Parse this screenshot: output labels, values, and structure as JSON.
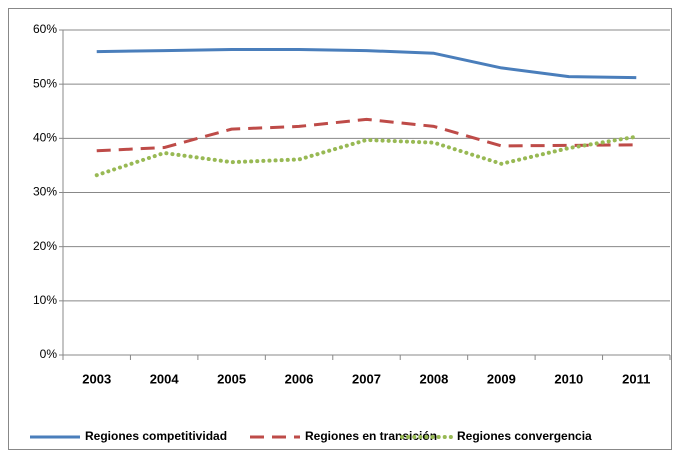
{
  "chart_data": {
    "type": "line",
    "categories": [
      "2003",
      "2004",
      "2005",
      "2006",
      "2007",
      "2008",
      "2009",
      "2010",
      "2011"
    ],
    "series": [
      {
        "name": "Regiones competitividad",
        "color": "#4a7ebb",
        "style": "solid",
        "values": [
          56,
          56.2,
          56.4,
          56.4,
          56.2,
          55.7,
          53,
          51.4,
          51.2
        ]
      },
      {
        "name": "Regiones en transición",
        "color": "#be4b48",
        "style": "dash",
        "values": [
          37.7,
          38.3,
          41.7,
          42.2,
          43.5,
          42.2,
          38.6,
          38.7,
          38.8
        ]
      },
      {
        "name": "Regiones convergencia",
        "color": "#98b954",
        "style": "dot",
        "values": [
          33.2,
          37.3,
          35.6,
          36.1,
          39.7,
          39.2,
          35.3,
          38.2,
          40.3
        ]
      }
    ],
    "ylim": [
      0,
      60
    ],
    "yticks": [
      {
        "value": 0,
        "label": "0%"
      },
      {
        "value": 10,
        "label": "10%"
      },
      {
        "value": 20,
        "label": "20%"
      },
      {
        "value": 30,
        "label": "30%"
      },
      {
        "value": 40,
        "label": "40%"
      },
      {
        "value": 50,
        "label": "50%"
      },
      {
        "value": 60,
        "label": "60%"
      }
    ],
    "grid": true,
    "legend": "bottom"
  }
}
